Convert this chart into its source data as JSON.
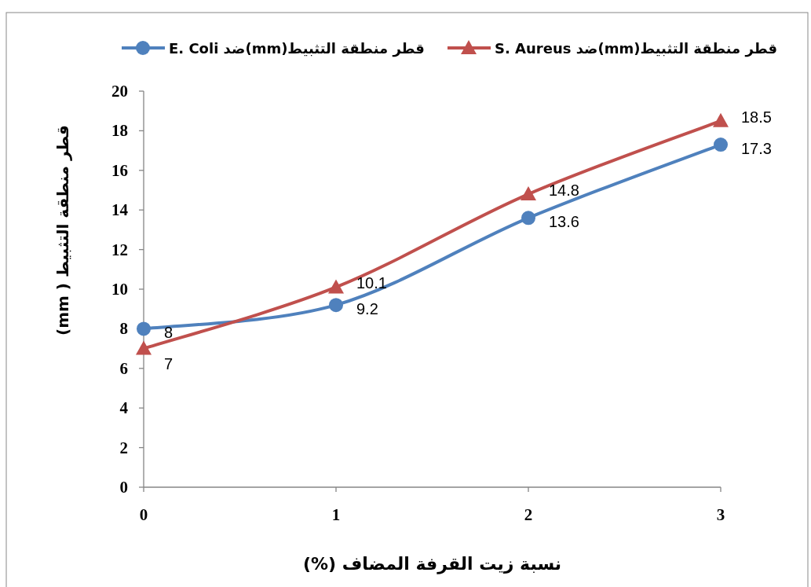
{
  "chart_data": {
    "type": "line",
    "xlabel": "نسبة زيت القرفة المضاف (%)",
    "ylabel": "قطر منطقة التثبيط ( mm)",
    "x": [
      0,
      1,
      2,
      3
    ],
    "series": [
      {
        "name": "قطر منطقة التثبيط(mm)ضد E. Coli",
        "color": "#4f81bd",
        "marker": "circle",
        "values": [
          8,
          9.2,
          13.6,
          17.3
        ]
      },
      {
        "name": "قطر منطقة التثبيط(mm)ضد S. Aureus",
        "color": "#c0504d",
        "marker": "triangle",
        "values": [
          7,
          10.1,
          14.8,
          18.5
        ]
      }
    ],
    "xlim": [
      0,
      3
    ],
    "xticks": [
      0,
      1,
      2,
      3
    ],
    "ylim": [
      0,
      20
    ],
    "yticks": [
      0,
      2,
      4,
      6,
      8,
      10,
      12,
      14,
      16,
      18,
      20
    ],
    "data_labels": true,
    "grid": false,
    "legend": "top",
    "line_style": "solid"
  }
}
